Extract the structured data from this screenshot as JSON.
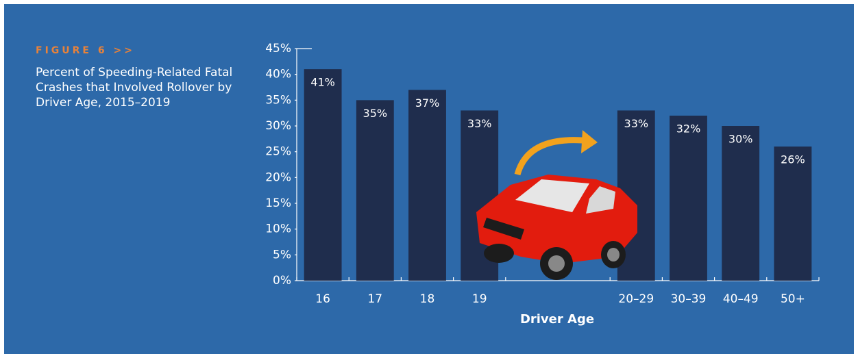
{
  "chart_data": {
    "type": "bar",
    "title": "FIGURE 6 >>",
    "subtitle": "Percent of Speeding-Related Fatal Crashes that Involved Rollover by Driver Age, 2015–2019",
    "x_label": "Driver Age",
    "categories": [
      "16",
      "17",
      "18",
      "19",
      null,
      null,
      "20–29",
      "30–39",
      "40–49",
      "50+"
    ],
    "values": [
      41,
      35,
      37,
      33,
      null,
      null,
      33,
      32,
      30,
      26
    ],
    "value_labels": [
      "41%",
      "35%",
      "37%",
      "33%",
      null,
      null,
      "33%",
      "32%",
      "30%",
      "26%"
    ],
    "color": "#1f2d4d",
    "ylim": [
      0,
      45
    ],
    "yticks": [
      {
        "value": 0,
        "label": "0%"
      },
      {
        "value": 5,
        "label": "5%"
      },
      {
        "value": 10,
        "label": "10%"
      },
      {
        "value": 15,
        "label": "15%"
      },
      {
        "value": 20,
        "label": "20%"
      },
      {
        "value": 25,
        "label": "25%"
      },
      {
        "value": 30,
        "label": "30%"
      },
      {
        "value": 35,
        "label": "35%"
      },
      {
        "value": 40,
        "label": "40%"
      },
      {
        "value": 45,
        "label": "45%"
      }
    ]
  }
}
